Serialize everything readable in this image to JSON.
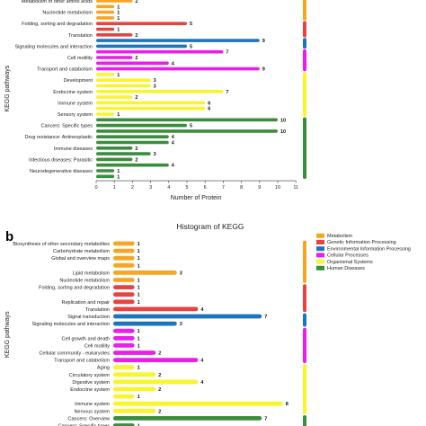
{
  "panel_label_b": "b",
  "colors": {
    "metabolism": "#f5a623",
    "genetic": "#e84343",
    "environmental": "#1c75bc",
    "cellular": "#e91ee9",
    "organismal": "#f8f52c",
    "human": "#3a8d3d"
  },
  "chart_data": [
    {
      "id": "a",
      "type": "bar",
      "orientation": "horizontal",
      "xlabel": "Number of Protein",
      "ylabel": "KEGG pathways",
      "xlim": [
        0,
        11
      ],
      "xticks": [
        0,
        1,
        2,
        3,
        4,
        5,
        6,
        7,
        8,
        9,
        10,
        11
      ],
      "grid": false,
      "items": [
        {
          "label": "Metabolism of other amino acids",
          "value": 2,
          "group": "metabolism"
        },
        {
          "label": "",
          "value": 1,
          "group": "metabolism"
        },
        {
          "label": "Nucleotide metabolism",
          "value": 1,
          "group": "metabolism"
        },
        {
          "label": "",
          "value": 1,
          "group": "metabolism"
        },
        {
          "label": "Folding, sorting and degradation",
          "value": 5,
          "group": "genetic"
        },
        {
          "label": "",
          "value": 1,
          "group": "genetic"
        },
        {
          "label": "Translation",
          "value": 2,
          "group": "genetic"
        },
        {
          "label": "",
          "value": 9,
          "group": "environmental"
        },
        {
          "label": "Signaling molecules and interaction",
          "value": 5,
          "group": "environmental"
        },
        {
          "label": "",
          "value": 7,
          "group": "cellular"
        },
        {
          "label": "Cell motility",
          "value": 2,
          "group": "cellular"
        },
        {
          "label": "",
          "value": 4,
          "group": "cellular"
        },
        {
          "label": "Transport and catabolism",
          "value": 9,
          "group": "cellular"
        },
        {
          "label": "",
          "value": 1,
          "group": "organismal"
        },
        {
          "label": "Development",
          "value": 3,
          "group": "organismal"
        },
        {
          "label": "",
          "value": 3,
          "group": "organismal"
        },
        {
          "label": "Endocrine system",
          "value": 7,
          "group": "organismal"
        },
        {
          "label": "",
          "value": 2,
          "group": "organismal"
        },
        {
          "label": "Immune system",
          "value": 6,
          "group": "organismal"
        },
        {
          "label": "",
          "value": 6,
          "group": "organismal"
        },
        {
          "label": "Sensory system",
          "value": 1,
          "group": "organismal"
        },
        {
          "label": "",
          "value": 10,
          "group": "human"
        },
        {
          "label": "Cancers: Specific types",
          "value": 5,
          "group": "human"
        },
        {
          "label": "",
          "value": 10,
          "group": "human"
        },
        {
          "label": "Drug resistance: Antineoplastic",
          "value": 4,
          "group": "human"
        },
        {
          "label": "",
          "value": 4,
          "group": "human"
        },
        {
          "label": "Immune diseases",
          "value": 2,
          "group": "human"
        },
        {
          "label": "",
          "value": 3,
          "group": "human"
        },
        {
          "label": "Infectious diseases: Parasitic",
          "value": 2,
          "group": "human"
        },
        {
          "label": "",
          "value": 4,
          "group": "human"
        },
        {
          "label": "Neurodegenerative diseases",
          "value": 1,
          "group": "human"
        },
        {
          "label": "",
          "value": 1,
          "group": "human"
        }
      ]
    },
    {
      "id": "b",
      "type": "bar",
      "orientation": "horizontal",
      "title": "Histogram of KEGG",
      "ylabel": "KEGG pathways",
      "grid": false,
      "legend_position": "top-right",
      "legend": [
        {
          "label": "Metabolism",
          "group": "metabolism"
        },
        {
          "label": "Genetic Information Processing",
          "group": "genetic"
        },
        {
          "label": "Environmental Information Processing",
          "group": "environmental"
        },
        {
          "label": "Cellular Processes",
          "group": "cellular"
        },
        {
          "label": "Organismal Systems",
          "group": "organismal"
        },
        {
          "label": "Human Diseases",
          "group": "human"
        }
      ],
      "items": [
        {
          "label": "Biosynthesis of other secondary metabolites",
          "value": 1,
          "group": "metabolism"
        },
        {
          "label": "Carbohydrate metabolism",
          "value": 1,
          "group": "metabolism"
        },
        {
          "label": "Global and overview maps",
          "value": 1,
          "group": "metabolism"
        },
        {
          "label": "",
          "value": 1,
          "group": "metabolism"
        },
        {
          "label": "Lipid metabolism",
          "value": 3,
          "group": "metabolism"
        },
        {
          "label": "Nucleotide metabolism",
          "value": 1,
          "group": "metabolism"
        },
        {
          "label": "Folding, sorting and degradation",
          "value": 1,
          "group": "genetic"
        },
        {
          "label": "",
          "value": 1,
          "group": "genetic"
        },
        {
          "label": "Replication and repair",
          "value": 1,
          "group": "genetic"
        },
        {
          "label": "Translation",
          "value": 4,
          "group": "genetic"
        },
        {
          "label": "Signal transduction",
          "value": 7,
          "group": "environmental"
        },
        {
          "label": "Signaling molecules and interaction",
          "value": 3,
          "group": "environmental"
        },
        {
          "label": "",
          "value": 1,
          "group": "cellular"
        },
        {
          "label": "Cell growth and death",
          "value": 1,
          "group": "cellular"
        },
        {
          "label": "Cell motility",
          "value": 1,
          "group": "cellular"
        },
        {
          "label": "Cellular community - eukaryotes",
          "value": 2,
          "group": "cellular"
        },
        {
          "label": "Transport and catabolism",
          "value": 4,
          "group": "cellular"
        },
        {
          "label": "Aging",
          "value": 1,
          "group": "organismal"
        },
        {
          "label": "Circulatory system",
          "value": 2,
          "group": "organismal"
        },
        {
          "label": "Digestive system",
          "value": 4,
          "group": "organismal"
        },
        {
          "label": "Endocrine system",
          "value": 2,
          "group": "organismal"
        },
        {
          "label": "",
          "value": 1,
          "group": "organismal"
        },
        {
          "label": "Immune system",
          "value": 8,
          "group": "organismal"
        },
        {
          "label": "Nervous system",
          "value": 2,
          "group": "organismal"
        },
        {
          "label": "Cancers: Overview",
          "value": 7,
          "group": "human"
        },
        {
          "label": "Cancers: Specific types",
          "value": 1,
          "group": "human"
        }
      ]
    }
  ]
}
